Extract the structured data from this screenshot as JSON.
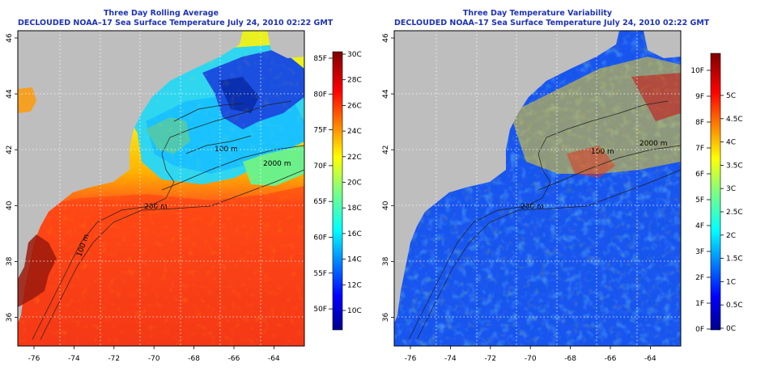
{
  "left": {
    "title": "Three Day Rolling Average",
    "subtitle": "DECLOUDED NOAA–17 Sea Surface Temperature July 24, 2010 02:22 GMT",
    "colorbar_type": "jet",
    "scale_f": [
      "85F",
      "80F",
      "75F",
      "70F",
      "65F",
      "60F",
      "55F",
      "50F"
    ],
    "scale_c": [
      "30C",
      "28C",
      "26C",
      "24C",
      "22C",
      "20C",
      "18C",
      "16C",
      "14C",
      "12C",
      "10C"
    ]
  },
  "right": {
    "title": "Three Day Temperature Variability",
    "subtitle": "DECLOUDED NOAA–17 Sea Surface Temperature July 24, 2010 02:22 GMT",
    "colorbar_type": "jet",
    "scale_f": [
      "10F",
      "9F",
      "8F",
      "7F",
      "6F",
      "5F",
      "4F",
      "3F",
      "2F",
      "1F",
      "0F"
    ],
    "scale_c": [
      "5C",
      "4.5C",
      "4C",
      "3.5C",
      "3C",
      "2.5C",
      "2C",
      "1.5C",
      "1C",
      "0.5C",
      "0C"
    ]
  },
  "lon_labels": [
    "-76",
    "-74",
    "-72",
    "-70",
    "-68",
    "-66",
    "-64"
  ],
  "lat_labels": [
    "46",
    "44",
    "42",
    "40",
    "38",
    "36"
  ],
  "contour_labels": [
    "100 m",
    "200 m",
    "2000 m",
    "200 m",
    "100 m"
  ],
  "colors": {
    "land": "#bebebe",
    "title": "#1f33b5",
    "grid": "#ffffff",
    "contour": "#202020",
    "axis": "#000000"
  }
}
